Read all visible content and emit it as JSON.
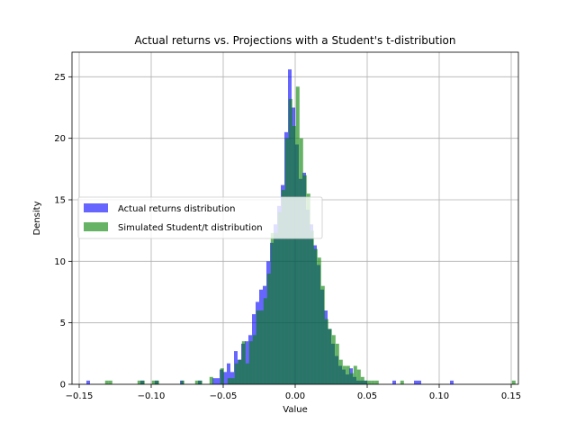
{
  "chart_data": {
    "type": "bar",
    "title": "Actual returns vs. Projections with a Student's t-distribution",
    "xlabel": "Value",
    "ylabel": "Density",
    "xlim": [
      -0.155,
      0.155
    ],
    "ylim": [
      0,
      27
    ],
    "xticks": [
      -0.15,
      -0.1,
      -0.05,
      0.0,
      0.05,
      0.1,
      0.15
    ],
    "xtick_labels": [
      "−0.15",
      "−0.10",
      "−0.05",
      "0.00",
      "0.05",
      "0.10",
      "0.15"
    ],
    "yticks": [
      0,
      5,
      10,
      15,
      20,
      25
    ],
    "ytick_labels": [
      "0",
      "5",
      "10",
      "15",
      "20",
      "25"
    ],
    "grid": true,
    "legend_position": "center-left",
    "bin_width": 0.0025,
    "series": [
      {
        "name": "Actual returns distribution",
        "color": "#0000ff",
        "opacity": 0.6,
        "bin_start": -0.145,
        "values": [
          0.3,
          0,
          0,
          0,
          0,
          0,
          0,
          0,
          0,
          0,
          0,
          0,
          0,
          0,
          0,
          0.3,
          0,
          0,
          0,
          0.3,
          0,
          0,
          0,
          0,
          0,
          0,
          0.3,
          0,
          0,
          0,
          0,
          0.3,
          0,
          0,
          0,
          0.5,
          0.5,
          1.2,
          1.0,
          1.7,
          1.0,
          2.7,
          2.0,
          3.3,
          3.5,
          4.0,
          5.7,
          6.7,
          7.7,
          8.0,
          10.0,
          11.5,
          13.0,
          14.5,
          16.2,
          20.5,
          25.6,
          22.5,
          19.5,
          16.7,
          17.2,
          14.2,
          13.0,
          11.3,
          9.7,
          7.7,
          6.0,
          4.5,
          3.3,
          2.3,
          1.5,
          1.2,
          0.8,
          1.3,
          0.6,
          0.3,
          0.3,
          0.3,
          0,
          0,
          0,
          0,
          0,
          0,
          0,
          0.3,
          0,
          0,
          0,
          0,
          0,
          0.3,
          0.3,
          0,
          0,
          0,
          0,
          0,
          0,
          0,
          0,
          0.3
        ]
      },
      {
        "name": "Simulated Student/t distribution",
        "color": "#008000",
        "opacity": 0.6,
        "bin_start": -0.132,
        "values": [
          0.3,
          0.3,
          0,
          0,
          0,
          0,
          0,
          0,
          0,
          0.3,
          0.3,
          0,
          0,
          0.3,
          0.3,
          0,
          0,
          0,
          0,
          0,
          0,
          0.3,
          0,
          0,
          0,
          0.3,
          0.3,
          0,
          0,
          0.6,
          0,
          0,
          1.3,
          0,
          0.5,
          0.5,
          1.7,
          2.0,
          3.5,
          1.7,
          3.5,
          4.0,
          6.0,
          6.0,
          7.0,
          9.0,
          12.3,
          12.3,
          14.0,
          15.8,
          20.0,
          23.2,
          21.0,
          24.2,
          20.0,
          17.0,
          15.5,
          12.5,
          11.0,
          10.3,
          8.0,
          5.3,
          4.5,
          4.0,
          3.3,
          2.0,
          1.5,
          1.5,
          0.9,
          1.5,
          1.2,
          0.6,
          0.3,
          0.3,
          0.3,
          0.3,
          0,
          0,
          0,
          0,
          0,
          0,
          0.3,
          0,
          0,
          0,
          0,
          0,
          0,
          0,
          0,
          0,
          0,
          0,
          0,
          0,
          0,
          0,
          0,
          0,
          0,
          0,
          0,
          0,
          0,
          0,
          0,
          0,
          0,
          0,
          0,
          0,
          0,
          0.3
        ]
      }
    ],
    "overlap_color": "#267363"
  }
}
